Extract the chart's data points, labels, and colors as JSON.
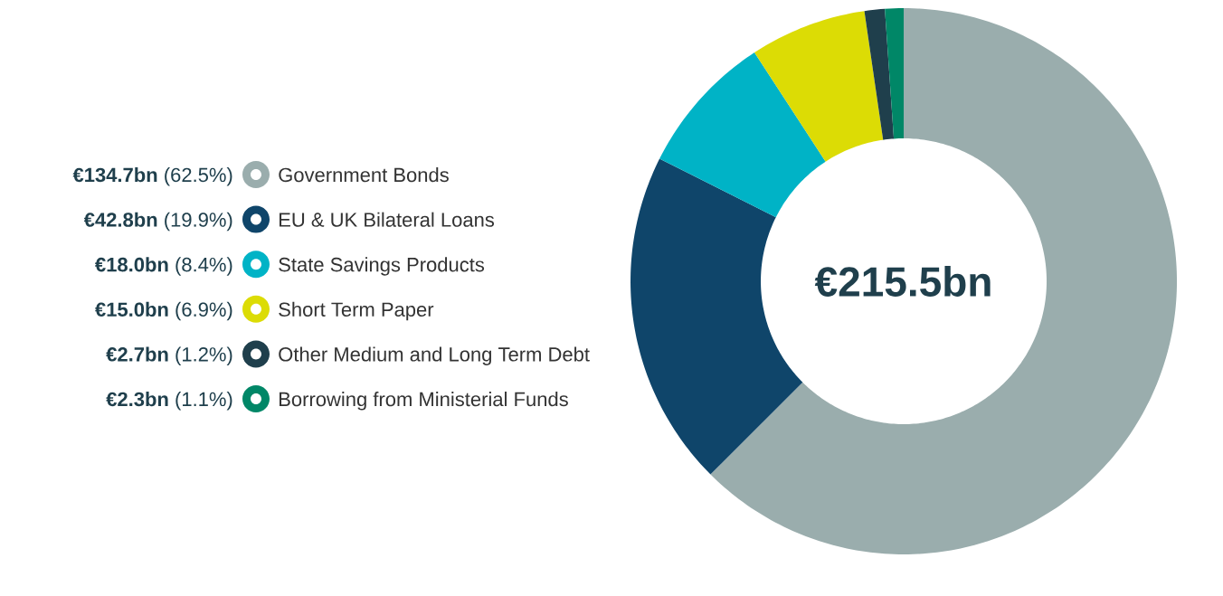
{
  "chart_data": {
    "type": "donut",
    "categories": [
      "Government Bonds",
      "EU & UK Bilateral Loans",
      "State Savings Products",
      "Short Term Paper",
      "Other Medium and Long Term Debt",
      "Borrowing from Ministerial Funds"
    ],
    "values": [
      62.5,
      19.9,
      8.4,
      6.9,
      1.2,
      1.1
    ],
    "value_labels": [
      "**€134.7bn** (62.5%)",
      "**€42.8bn** (19.9%)",
      "**€18.0bn** (8.4%)",
      "**€15.0bn** (6.9%)",
      "**€2.7bn** (1.2%)",
      "**€2.3bn** (1.1%)"
    ],
    "colors": [
      "#9aadad",
      "#0f456a",
      "#00b3c6",
      "#dcdc05",
      "#1f3f4c",
      "#008767"
    ],
    "legend": "left",
    "annotations": [
      "€215.5bn"
    ]
  }
}
